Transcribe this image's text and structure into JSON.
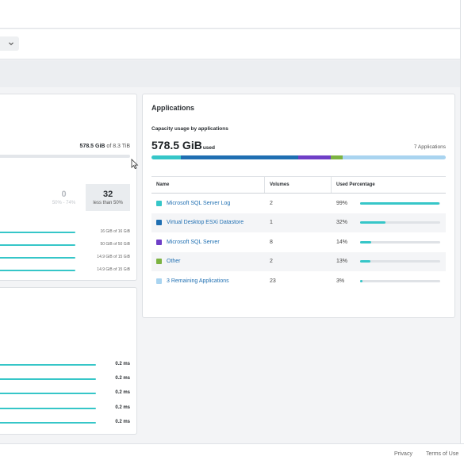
{
  "header": {
    "dropdown_icon": "chevron-down-icon"
  },
  "left_capacity": {
    "used_value": "578.5 GiB",
    "used_suffix": "of 8.3 TiB",
    "buckets": [
      {
        "count": "",
        "label": ""
      },
      {
        "count": "0",
        "label": "50% - 74%"
      },
      {
        "count": "32",
        "label": "less than 50%"
      }
    ],
    "rows": [
      "16 GiB of 16 GiB",
      "50 GiB of 50 GiB",
      "14.9 GiB of 15 GiB",
      "14.9 GiB of 15 GiB"
    ]
  },
  "latency": {
    "rows": [
      "0.2 ms",
      "0.2 ms",
      "0.2 ms",
      "0.2 ms",
      "0.2 ms"
    ]
  },
  "applications": {
    "title": "Applications",
    "subtitle": "Capacity usage by applications",
    "used_value": "578.5 GiB",
    "used_unit": "used",
    "count_label": "7 Applications",
    "capacity_breakdown_pct": [
      {
        "color": "#36c6c8",
        "pct": 10
      },
      {
        "color": "#1f6fb2",
        "pct": 40
      },
      {
        "color": "#6f3fc7",
        "pct": 11
      },
      {
        "color": "#7cb342",
        "pct": 4
      },
      {
        "color": "#a9d4f0",
        "pct": 35
      }
    ],
    "columns": [
      "Name",
      "Volumes",
      "Used Percentage"
    ],
    "rows": [
      {
        "name": "Microsoft SQL Server Log",
        "volumes": "2",
        "percent": "99%",
        "fill": 0.99,
        "color": "#36c6c8"
      },
      {
        "name": "Virtual Desktop ESXi Datastore",
        "volumes": "1",
        "percent": "32%",
        "fill": 0.32,
        "color": "#1f6fb2"
      },
      {
        "name": "Microsoft SQL Server",
        "volumes": "8",
        "percent": "14%",
        "fill": 0.14,
        "color": "#6f3fc7"
      },
      {
        "name": "Other",
        "volumes": "2",
        "percent": "13%",
        "fill": 0.13,
        "color": "#7cb342"
      },
      {
        "name": "3 Remaining Applications",
        "volumes": "23",
        "percent": "3%",
        "fill": 0.03,
        "color": "#a9d4f0"
      }
    ]
  },
  "footer": {
    "privacy": "Privacy",
    "terms": "Terms of Use"
  }
}
